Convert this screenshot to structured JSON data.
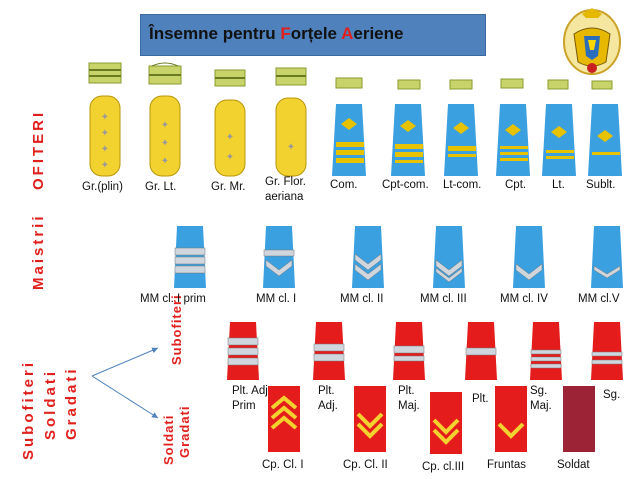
{
  "title": {
    "part1": "Însemne pentru ",
    "F": "F",
    "part2": "orțele ",
    "A": "A",
    "part3": "eriene"
  },
  "sections": {
    "ofiteri": "OFITERI",
    "maistrii": "Maistrii",
    "subofiteri_lines": [
      "Subofiteri",
      "Soldati",
      "Gradati"
    ],
    "sub_label": "Subofiteri",
    "soldati_label": "Soldati",
    "gradati_label": "Gradati"
  },
  "ofiteri_ranks": [
    "Gr.(plin)",
    "Gr. Lt.",
    "Gr. Mr.",
    "Gr. Flor. aeriana",
    "Com.",
    "Cpt-com.",
    "Lt-com.",
    "Cpt.",
    "Lt.",
    "Sublt."
  ],
  "maistri_ranks": [
    "MM cl. I prim",
    "MM cl. I",
    "MM cl. II",
    "MM cl. III",
    "MM cl. IV",
    "MM cl.V"
  ],
  "subofiteri_ranks": [
    "Plt. Adj. Prim",
    "Plt. Adj.",
    "Plt. Maj.",
    "Plt.",
    "Sg. Maj.",
    "Sg."
  ],
  "gradati_ranks": [
    "Cp. Cl. I",
    "Cp. Cl. II",
    "Cp. cl.III",
    "Fruntas",
    "Soldat"
  ],
  "colors": {
    "gold": "#f2d22e",
    "blue": "#3aa0e0",
    "red": "#e51c1c",
    "darkred": "#9b2335",
    "accent": "#e0201c",
    "frame": "#4f81bd"
  }
}
